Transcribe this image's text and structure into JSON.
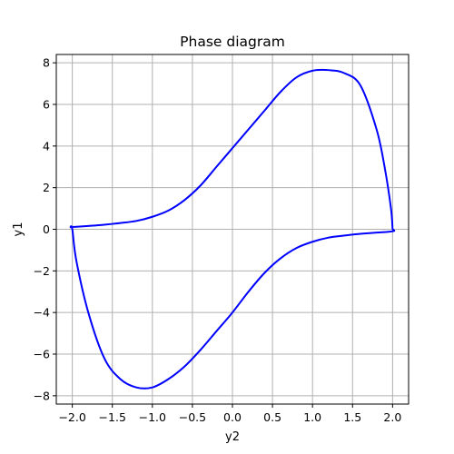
{
  "chart_data": {
    "type": "line",
    "title": "Phase diagram",
    "xlabel": "y2",
    "ylabel": "y1",
    "xlim": [
      -2.2,
      2.2
    ],
    "ylim": [
      -8.4,
      8.4
    ],
    "grid": true,
    "x_ticks": [
      -2.0,
      -1.5,
      -1.0,
      -0.5,
      0.0,
      0.5,
      1.0,
      1.5,
      2.0
    ],
    "x_tick_labels": [
      "−2.0",
      "−1.5",
      "−1.0",
      "−0.5",
      "0.0",
      "0.5",
      "1.0",
      "1.5",
      "2.0"
    ],
    "y_ticks": [
      -8,
      -6,
      -4,
      -2,
      0,
      2,
      4,
      6,
      8
    ],
    "y_tick_labels": [
      "−8",
      "−6",
      "−4",
      "−2",
      "0",
      "2",
      "4",
      "6",
      "8"
    ],
    "series": [
      {
        "color": "#0000ff",
        "x": [
          2.0,
          1.98,
          1.9,
          1.8,
          1.6,
          1.4,
          1.2,
          1.0,
          0.8,
          0.6,
          0.4,
          0.2,
          0.0,
          -0.2,
          -0.4,
          -0.6,
          -0.8,
          -1.0,
          -1.2,
          -1.4,
          -1.6,
          -1.8,
          -1.95,
          -2.02,
          -2.0,
          -1.95,
          -1.8,
          -1.6,
          -1.4,
          -1.2,
          -1.0,
          -0.8,
          -0.6,
          -0.4,
          -0.2,
          0.0,
          0.2,
          0.4,
          0.6,
          0.8,
          1.0,
          1.2,
          1.4,
          1.6,
          1.8,
          1.95,
          2.02,
          2.0
        ],
        "y": [
          0.0,
          1.0,
          3.0,
          4.8,
          6.9,
          7.5,
          7.65,
          7.62,
          7.3,
          6.6,
          5.7,
          4.8,
          3.9,
          3.0,
          2.1,
          1.4,
          0.9,
          0.6,
          0.4,
          0.3,
          0.22,
          0.16,
          0.12,
          0.1,
          0.0,
          -1.5,
          -4.0,
          -6.2,
          -7.2,
          -7.6,
          -7.6,
          -7.2,
          -6.6,
          -5.8,
          -4.9,
          -4.0,
          -3.0,
          -2.1,
          -1.4,
          -0.9,
          -0.6,
          -0.4,
          -0.3,
          -0.22,
          -0.16,
          -0.12,
          -0.08,
          0.0
        ]
      }
    ]
  }
}
